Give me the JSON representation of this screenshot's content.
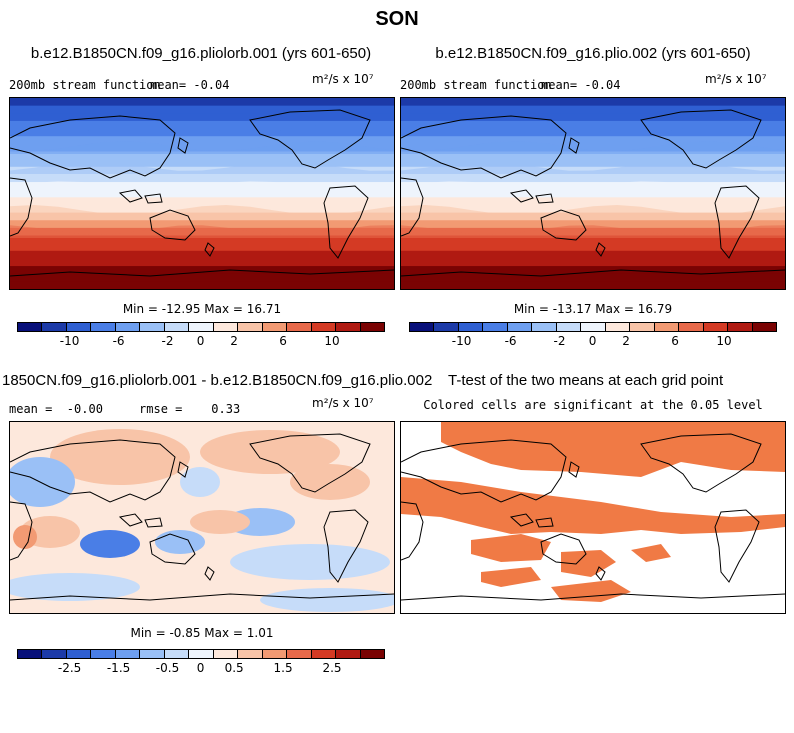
{
  "page_title": "SON",
  "colors": {
    "sf_palette": [
      "#08107a",
      "#1c3aa8",
      "#2f5fd2",
      "#4a7ee6",
      "#6e9ff0",
      "#9ac0f6",
      "#c6dcf9",
      "#eef4fc",
      "#fde8dc",
      "#f8c4a8",
      "#f29a73",
      "#e7694a",
      "#d43a24",
      "#b01a12",
      "#7a0303"
    ],
    "diff_palette": [
      "#08107a",
      "#1c3aa8",
      "#2f5fd2",
      "#4a7ee6",
      "#6e9ff0",
      "#9ac0f6",
      "#c6dcf9",
      "#eef4fc",
      "#fde8dc",
      "#f8c4a8",
      "#f29a73",
      "#e7694a",
      "#d43a24",
      "#b01a12",
      "#7a0303"
    ],
    "significance": "#f07a45"
  },
  "chart_data": [
    {
      "type": "heatmap",
      "title": "b.e12.B1850CN.f09_g16.pliolorb.001 (yrs 601-650)",
      "left_label": "200mb stream function",
      "mean_label": "mean=  -0.04",
      "units_label": "m²/s x 10⁷",
      "min_max_label": "Min = -12.95 Max =  16.71",
      "min": -12.95,
      "max": 16.71,
      "mean": -0.04,
      "colorbar_ticks": [
        "-10",
        "-6",
        "-2",
        "0",
        "2",
        "6",
        "10"
      ]
    },
    {
      "type": "heatmap",
      "title": "b.e12.B1850CN.f09_g16.plio.002 (yrs 601-650)",
      "left_label": "200mb stream function",
      "mean_label": "mean=  -0.04",
      "units_label": "m²/s x 10⁷",
      "min_max_label": "Min = -13.17 Max =  16.79",
      "min": -13.17,
      "max": 16.79,
      "mean": -0.04,
      "colorbar_ticks": [
        "-10",
        "-6",
        "-2",
        "0",
        "2",
        "6",
        "10"
      ]
    },
    {
      "type": "heatmap",
      "title": "1850CN.f09_g16.pliolorb.001 - b.e12.B1850CN.f09_g16.plio.002",
      "left_label": "mean =  -0.00     rmse =    0.33",
      "units_label": "m²/s x 10⁷",
      "min_max_label": "Min = -0.85 Max =  1.01",
      "min": -0.85,
      "max": 1.01,
      "mean": -0.0,
      "rmse": 0.33,
      "colorbar_ticks": [
        "-2.5",
        "-1.5",
        "-0.5",
        "0",
        "0.5",
        "1.5",
        "2.5"
      ]
    },
    {
      "type": "heatmap",
      "title": "T-test of the two means at each grid point",
      "subtitle": "Colored cells are significant at the 0.05 level"
    }
  ]
}
